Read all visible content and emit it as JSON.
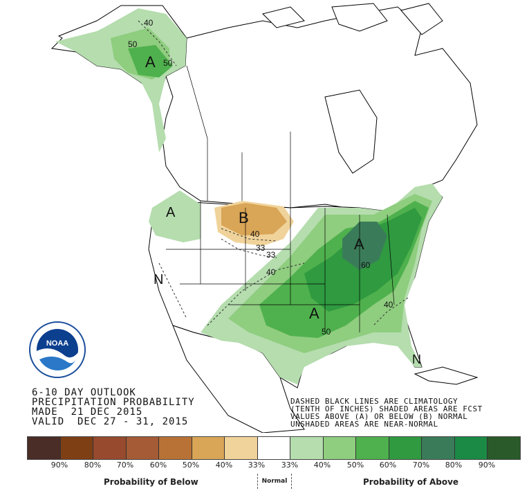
{
  "title": {
    "line1": "6-10 DAY OUTLOOK",
    "line2": "PRECIPITATION PROBABILITY",
    "line3": "MADE  21 DEC 2015",
    "line4": "VALID  DEC 27 - 31, 2015"
  },
  "notes": {
    "line1": "DASHED BLACK LINES ARE CLIMATOLOGY",
    "line2": "(TENTH OF INCHES) SHADED AREAS ARE FCST",
    "line3": "VALUES ABOVE (A) OR BELOW (B) NORMAL",
    "line4": "UNSHADED AREAS ARE NEAR-NORMAL"
  },
  "logo": {
    "text": "NOAA",
    "ring_text": "NATIONAL OCEANIC AND ATMOSPHERIC ADMINISTRATION · U.S. DEPARTMENT OF COMMERCE"
  },
  "map_labels": {
    "alaska_letter": "A",
    "alaska_c1": "40",
    "alaska_c2": "50",
    "alaska_c3": "50",
    "west_letter": "A",
    "plains_letter": "B",
    "plains_40": "40",
    "plains_33a": "33",
    "plains_33b": "33",
    "midwest_40": "40",
    "lakes_letter": "A",
    "lakes_60": "60",
    "south_letter": "A",
    "south_50": "50",
    "east_40": "40",
    "nevada_letter": "N",
    "florida_letter": "N"
  },
  "colors": {
    "below_90": "#4a2d27",
    "below_80": "#7f3f14",
    "below_70": "#974a2e",
    "below_60": "#a55b35",
    "below_50": "#b97236",
    "below_40": "#d9a556",
    "below_33": "#f0d39a",
    "normal": "#ffffff",
    "above_33": "#b5ddae",
    "above_40": "#8fcd7f",
    "above_50": "#4fb14d",
    "above_60": "#2f9a40",
    "above_70": "#3a7c59",
    "above_80": "#1a8a45",
    "above_90": "#2a5a2a"
  },
  "legend": {
    "percent_labels": [
      "90%",
      "80%",
      "70%",
      "60%",
      "50%",
      "40%",
      "33%",
      "33%",
      "40%",
      "50%",
      "60%",
      "70%",
      "80%",
      "90%"
    ],
    "below_caption": "Probability of Below",
    "normal_caption": "Normal",
    "above_caption": "Probability of Above"
  }
}
